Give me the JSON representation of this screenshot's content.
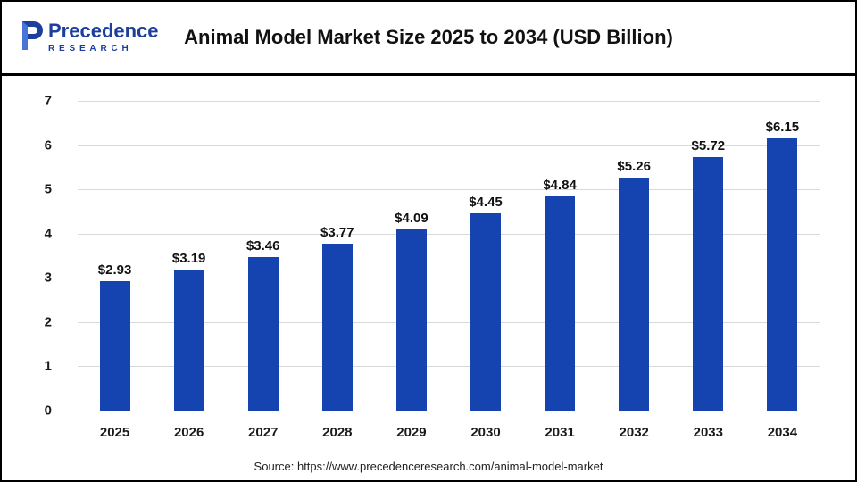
{
  "header": {
    "title": "Animal Model Market Size 2025 to 2034 (USD Billion)",
    "logo": {
      "word": "Precedence",
      "subtitle": "RESEARCH"
    }
  },
  "chart_data": {
    "type": "bar",
    "title": "Animal Model Market Size 2025 to 2034 (USD Billion)",
    "categories": [
      "2025",
      "2026",
      "2027",
      "2028",
      "2029",
      "2030",
      "2031",
      "2032",
      "2033",
      "2034"
    ],
    "values": [
      2.93,
      3.19,
      3.46,
      3.77,
      4.09,
      4.45,
      4.84,
      5.26,
      5.72,
      6.15
    ],
    "labels": [
      "$2.93",
      "$3.19",
      "$3.46",
      "$3.77",
      "$4.09",
      "$4.45",
      "$4.84",
      "$5.26",
      "$5.72",
      "$6.15"
    ],
    "xlabel": "",
    "ylabel": "",
    "ylim": [
      0,
      7
    ],
    "yticks": [
      0,
      1,
      2,
      3,
      4,
      5,
      6,
      7
    ],
    "grid": true,
    "legend": "none",
    "bar_color": "#1544b0"
  },
  "footer": {
    "source": "Source: https://www.precedenceresearch.com/animal-model-market"
  }
}
